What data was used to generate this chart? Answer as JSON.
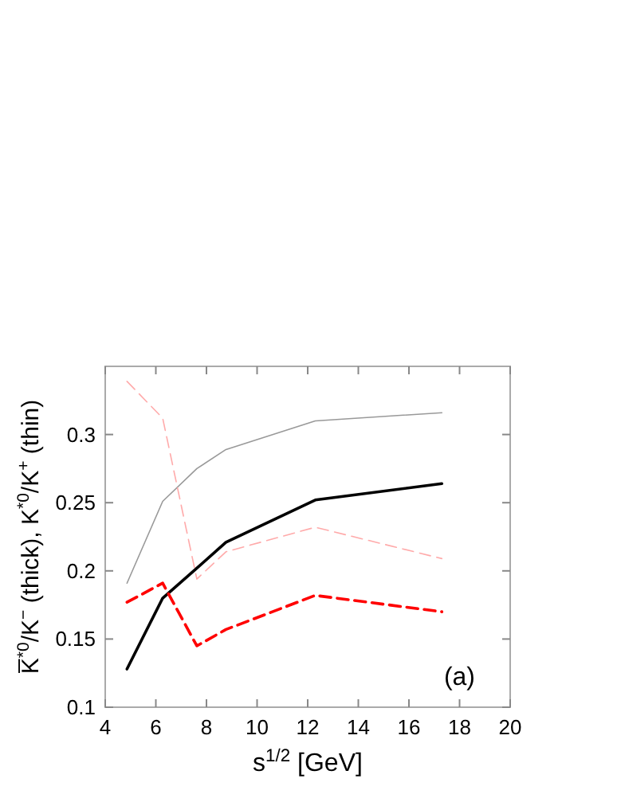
{
  "chart_data": {
    "type": "line",
    "xlabel": "s$^{1/2}$ [GeV]",
    "ylabel": "K̅$^{*0}$/K$^{−}$ (thick), K$^{*0}$/K$^{+}$ (thin)",
    "annotations": [
      "(a)"
    ],
    "xlim": [
      4,
      20
    ],
    "xticks": [
      4,
      6,
      8,
      10,
      12,
      14,
      16,
      18,
      20
    ],
    "ylim": [
      0.1,
      0.35
    ],
    "yticks": [
      0.1,
      0.15,
      0.2,
      0.25,
      0.3
    ],
    "grid": false,
    "marker": "none",
    "x": [
      4.86,
      6.27,
      7.62,
      8.77,
      12.3,
      17.3
    ],
    "series": [
      {
        "color": "#000000",
        "line_style": "solid",
        "values": [
          0.128,
          0.18,
          0.202,
          0.221,
          0.252,
          0.264
        ]
      },
      {
        "color": "#ff0000",
        "line_style": "dashed",
        "values": [
          0.177,
          0.191,
          0.145,
          0.157,
          0.182,
          0.17
        ]
      },
      {
        "color": "#999999",
        "line_style": "solid",
        "values": [
          0.191,
          0.251,
          0.275,
          0.289,
          0.31,
          0.316
        ]
      },
      {
        "color": "#ffaaaa",
        "line_style": "dashed",
        "values": [
          0.339,
          0.312,
          0.194,
          0.214,
          0.232,
          0.209
        ]
      }
    ]
  }
}
